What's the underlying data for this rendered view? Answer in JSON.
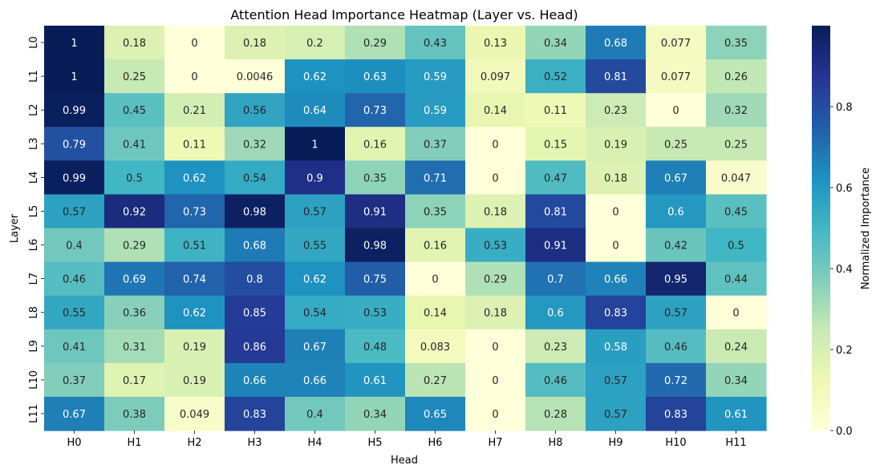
{
  "chart_data": {
    "type": "heatmap",
    "title": "Attention Head Importance Heatmap (Layer vs. Head)",
    "xlabel": "Head",
    "ylabel": "Layer",
    "x_categories": [
      "H0",
      "H1",
      "H2",
      "H3",
      "H4",
      "H5",
      "H6",
      "H7",
      "H8",
      "H9",
      "H10",
      "H11"
    ],
    "y_categories": [
      "L0",
      "L1",
      "L2",
      "L3",
      "L4",
      "L5",
      "L6",
      "L7",
      "L8",
      "L9",
      "L10",
      "L11"
    ],
    "values": [
      [
        1,
        0.18,
        0,
        0.18,
        0.2,
        0.29,
        0.43,
        0.13,
        0.34,
        0.68,
        0.077,
        0.35
      ],
      [
        1,
        0.25,
        0,
        0.0046,
        0.62,
        0.63,
        0.59,
        0.097,
        0.52,
        0.81,
        0.077,
        0.26
      ],
      [
        0.99,
        0.45,
        0.21,
        0.56,
        0.64,
        0.73,
        0.59,
        0.14,
        0.11,
        0.23,
        0,
        0.32
      ],
      [
        0.79,
        0.41,
        0.11,
        0.32,
        1,
        0.16,
        0.37,
        0,
        0.15,
        0.19,
        0.25,
        0.25
      ],
      [
        0.99,
        0.5,
        0.62,
        0.54,
        0.9,
        0.35,
        0.71,
        0,
        0.47,
        0.18,
        0.67,
        0.047
      ],
      [
        0.57,
        0.92,
        0.73,
        0.98,
        0.57,
        0.91,
        0.35,
        0.18,
        0.81,
        0,
        0.6,
        0.45
      ],
      [
        0.4,
        0.29,
        0.51,
        0.68,
        0.55,
        0.98,
        0.16,
        0.53,
        0.91,
        0,
        0.42,
        0.5
      ],
      [
        0.46,
        0.69,
        0.74,
        0.8,
        0.62,
        0.75,
        0,
        0.29,
        0.7,
        0.66,
        0.95,
        0.44
      ],
      [
        0.55,
        0.36,
        0.62,
        0.85,
        0.54,
        0.53,
        0.14,
        0.18,
        0.6,
        0.83,
        0.57,
        0
      ],
      [
        0.41,
        0.31,
        0.19,
        0.86,
        0.67,
        0.48,
        0.083,
        0,
        0.23,
        0.58,
        0.46,
        0.24
      ],
      [
        0.37,
        0.17,
        0.19,
        0.66,
        0.66,
        0.61,
        0.27,
        0,
        0.46,
        0.57,
        0.72,
        0.34
      ],
      [
        0.67,
        0.38,
        0.049,
        0.83,
        0.4,
        0.34,
        0.65,
        0,
        0.28,
        0.57,
        0.83,
        0.61
      ]
    ],
    "value_labels": [
      [
        "1",
        "0.18",
        "0",
        "0.18",
        "0.2",
        "0.29",
        "0.43",
        "0.13",
        "0.34",
        "0.68",
        "0.077",
        "0.35"
      ],
      [
        "1",
        "0.25",
        "0",
        "0.0046",
        "0.62",
        "0.63",
        "0.59",
        "0.097",
        "0.52",
        "0.81",
        "0.077",
        "0.26"
      ],
      [
        "0.99",
        "0.45",
        "0.21",
        "0.56",
        "0.64",
        "0.73",
        "0.59",
        "0.14",
        "0.11",
        "0.23",
        "0",
        "0.32"
      ],
      [
        "0.79",
        "0.41",
        "0.11",
        "0.32",
        "1",
        "0.16",
        "0.37",
        "0",
        "0.15",
        "0.19",
        "0.25",
        "0.25"
      ],
      [
        "0.99",
        "0.5",
        "0.62",
        "0.54",
        "0.9",
        "0.35",
        "0.71",
        "0",
        "0.47",
        "0.18",
        "0.67",
        "0.047"
      ],
      [
        "0.57",
        "0.92",
        "0.73",
        "0.98",
        "0.57",
        "0.91",
        "0.35",
        "0.18",
        "0.81",
        "0",
        "0.6",
        "0.45"
      ],
      [
        "0.4",
        "0.29",
        "0.51",
        "0.68",
        "0.55",
        "0.98",
        "0.16",
        "0.53",
        "0.91",
        "0",
        "0.42",
        "0.5"
      ],
      [
        "0.46",
        "0.69",
        "0.74",
        "0.8",
        "0.62",
        "0.75",
        "0",
        "0.29",
        "0.7",
        "0.66",
        "0.95",
        "0.44"
      ],
      [
        "0.55",
        "0.36",
        "0.62",
        "0.85",
        "0.54",
        "0.53",
        "0.14",
        "0.18",
        "0.6",
        "0.83",
        "0.57",
        "0"
      ],
      [
        "0.41",
        "0.31",
        "0.19",
        "0.86",
        "0.67",
        "0.48",
        "0.083",
        "0",
        "0.23",
        "0.58",
        "0.46",
        "0.24"
      ],
      [
        "0.37",
        "0.17",
        "0.19",
        "0.66",
        "0.66",
        "0.61",
        "0.27",
        "0",
        "0.46",
        "0.57",
        "0.72",
        "0.34"
      ],
      [
        "0.67",
        "0.38",
        "0.049",
        "0.83",
        "0.4",
        "0.34",
        "0.65",
        "0",
        "0.28",
        "0.57",
        "0.83",
        "0.61"
      ]
    ],
    "colorbar": {
      "label": "Normalized Importance",
      "range": [
        0,
        1
      ],
      "tick_values": [
        0,
        0.2,
        0.4,
        0.6,
        0.8
      ],
      "tick_labels": [
        "0.0",
        "0.2",
        "0.4",
        "0.6",
        "0.8"
      ]
    },
    "colormap": "YlGnBu",
    "colormap_stops": [
      "#ffffd9",
      "#edf8b1",
      "#c7e9b4",
      "#7fcdbb",
      "#41b6c4",
      "#1d91c0",
      "#225ea8",
      "#253494",
      "#081d58"
    ],
    "grid": false
  }
}
